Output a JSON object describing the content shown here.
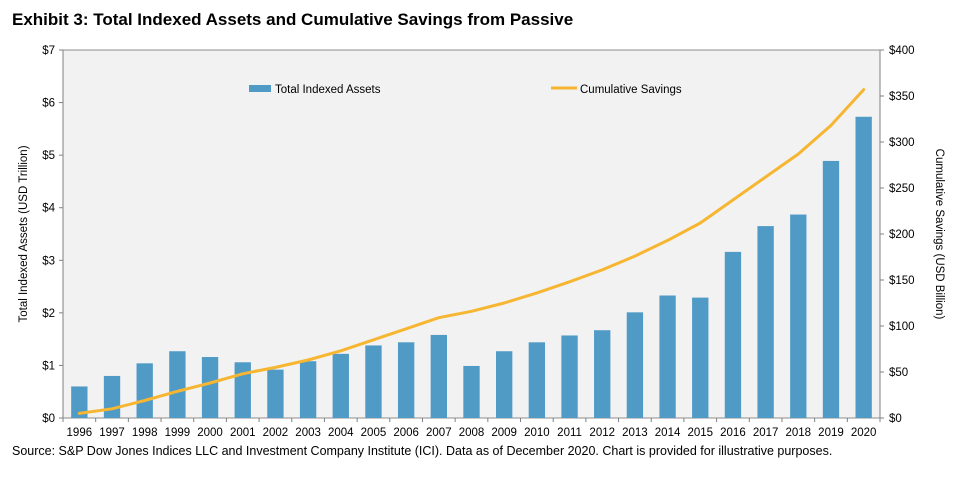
{
  "title": "Exhibit 3: Total Indexed Assets and Cumulative Savings from Passive",
  "source": "Source: S&P Dow Jones Indices LLC and Investment Company Institute (ICI). Data as of December 2020. Chart is provided for illustrative purposes.",
  "colors": {
    "bars": "#4f9bc6",
    "line": "#f7b631",
    "plot_bg": "#f2f2f2"
  },
  "chart_data": {
    "type": "bar+line",
    "title": "Exhibit 3: Total Indexed Assets and Cumulative Savings from Passive",
    "categories": [
      "1996",
      "1997",
      "1998",
      "1999",
      "2000",
      "2001",
      "2002",
      "2003",
      "2004",
      "2005",
      "2006",
      "2007",
      "2008",
      "2009",
      "2010",
      "2011",
      "2012",
      "2013",
      "2014",
      "2015",
      "2016",
      "2017",
      "2018",
      "2019",
      "2020"
    ],
    "series": [
      {
        "name": "Total Indexed Assets",
        "type": "bar",
        "axis": "left",
        "values": [
          0.6,
          0.8,
          1.04,
          1.27,
          1.16,
          1.06,
          0.92,
          1.08,
          1.22,
          1.38,
          1.44,
          1.58,
          0.99,
          1.27,
          1.44,
          1.57,
          1.67,
          2.01,
          2.33,
          2.29,
          3.16,
          3.65,
          3.87,
          4.89,
          5.73
        ]
      },
      {
        "name": "Cumulative Savings",
        "type": "line",
        "axis": "right",
        "values": [
          5,
          10,
          19,
          29,
          38,
          48,
          55,
          63,
          73,
          85,
          97,
          109,
          116,
          125,
          136,
          148,
          161,
          176,
          193,
          212,
          237,
          262,
          287,
          318,
          357
        ]
      }
    ],
    "y_left": {
      "label": "Total Indexed Assets (USD Trillion)",
      "min": 0,
      "max": 7,
      "ticks": [
        0,
        1,
        2,
        3,
        4,
        5,
        6,
        7
      ],
      "tick_labels": [
        "$0",
        "$1",
        "$2",
        "$3",
        "$4",
        "$5",
        "$6",
        "$7"
      ]
    },
    "y_right": {
      "label": "Cumulative Savings (USD Billion)",
      "min": 0,
      "max": 400,
      "ticks": [
        0,
        50,
        100,
        150,
        200,
        250,
        300,
        350,
        400
      ],
      "tick_labels": [
        "$0",
        "$50",
        "$100",
        "$150",
        "$200",
        "$250",
        "$300",
        "$350",
        "$400"
      ]
    },
    "grid": false,
    "legend": "top"
  }
}
